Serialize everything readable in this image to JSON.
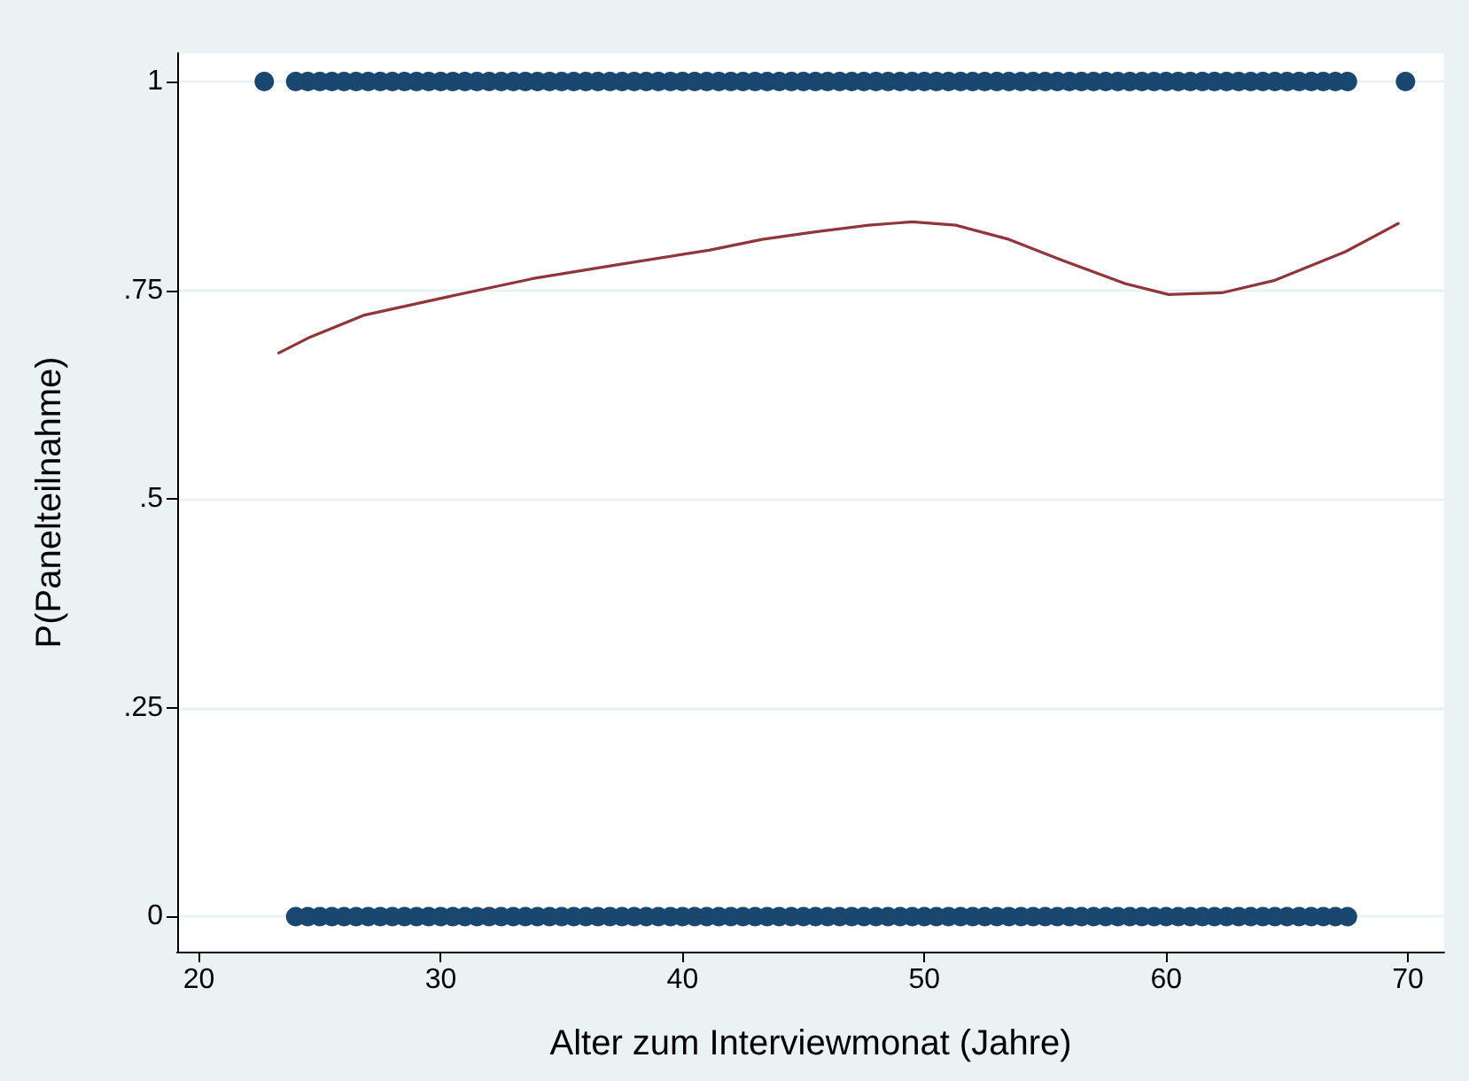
{
  "chart_data": {
    "type": "scatter",
    "xlabel": "Alter zum Interviewmonat (Jahre)",
    "ylabel": "P(Panelteilnahme)",
    "xlim": [
      19.1,
      71.5
    ],
    "ylim": [
      -0.042,
      1.034
    ],
    "xticks": [
      20,
      30,
      40,
      50,
      60,
      70
    ],
    "yticks": [
      0,
      {
        "value": 0.25,
        "label": ".25"
      },
      {
        "value": 0.5,
        "label": ".5"
      },
      {
        "value": 0.75,
        "label": ".75"
      },
      1
    ],
    "grid": "y",
    "series": [
      {
        "marker": "circle",
        "color": "#1a476f",
        "x": [
          22.7,
          24,
          24.5,
          25,
          25.5,
          26,
          26.5,
          27,
          27.5,
          28,
          28.5,
          29,
          29.5,
          30,
          30.5,
          31,
          31.5,
          32,
          32.5,
          33,
          33.5,
          34,
          34.5,
          35,
          35.5,
          36,
          36.5,
          37,
          37.5,
          38,
          38.5,
          39,
          39.5,
          40,
          40.5,
          41,
          41.5,
          42,
          42.5,
          43,
          43.5,
          44,
          44.5,
          45,
          45.5,
          46,
          46.5,
          47,
          47.5,
          48,
          48.5,
          49,
          49.5,
          50,
          50.5,
          51,
          51.5,
          52,
          52.5,
          53,
          53.5,
          54,
          54.5,
          55,
          55.5,
          56,
          56.5,
          57,
          57.5,
          58,
          58.5,
          59,
          59.5,
          60,
          60.5,
          61,
          61.5,
          62,
          62.5,
          63,
          63.5,
          64,
          64.5,
          65,
          65.5,
          66,
          66.5,
          67,
          67.5,
          69.9
        ],
        "values": [
          1,
          1,
          1,
          1,
          1,
          1,
          1,
          1,
          1,
          1,
          1,
          1,
          1,
          1,
          1,
          1,
          1,
          1,
          1,
          1,
          1,
          1,
          1,
          1,
          1,
          1,
          1,
          1,
          1,
          1,
          1,
          1,
          1,
          1,
          1,
          1,
          1,
          1,
          1,
          1,
          1,
          1,
          1,
          1,
          1,
          1,
          1,
          1,
          1,
          1,
          1,
          1,
          1,
          1,
          1,
          1,
          1,
          1,
          1,
          1,
          1,
          1,
          1,
          1,
          1,
          1,
          1,
          1,
          1,
          1,
          1,
          1,
          1,
          1,
          1,
          1,
          1,
          1,
          1,
          1,
          1,
          1,
          1,
          1,
          1,
          1,
          1,
          1,
          1,
          1
        ]
      },
      {
        "marker": "circle",
        "color": "#1a476f",
        "x": [
          24,
          24.5,
          25,
          25.5,
          26,
          26.5,
          27,
          27.5,
          28,
          28.5,
          29,
          29.5,
          30,
          30.5,
          31,
          31.5,
          32,
          32.5,
          33,
          33.5,
          34,
          34.5,
          35,
          35.5,
          36,
          36.5,
          37,
          37.5,
          38,
          38.5,
          39,
          39.5,
          40,
          40.5,
          41,
          41.5,
          42,
          42.5,
          43,
          43.5,
          44,
          44.5,
          45,
          45.5,
          46,
          46.5,
          47,
          47.5,
          48,
          48.5,
          49,
          49.5,
          50,
          50.5,
          51,
          51.5,
          52,
          52.5,
          53,
          53.5,
          54,
          54.5,
          55,
          55.5,
          56,
          56.5,
          57,
          57.5,
          58,
          58.5,
          59,
          59.5,
          60,
          60.5,
          61,
          61.5,
          62,
          62.5,
          63,
          63.5,
          64,
          64.5,
          65,
          65.5,
          66,
          66.5,
          67,
          67.5
        ],
        "values": [
          0,
          0,
          0,
          0,
          0,
          0,
          0,
          0,
          0,
          0,
          0,
          0,
          0,
          0,
          0,
          0,
          0,
          0,
          0,
          0,
          0,
          0,
          0,
          0,
          0,
          0,
          0,
          0,
          0,
          0,
          0,
          0,
          0,
          0,
          0,
          0,
          0,
          0,
          0,
          0,
          0,
          0,
          0,
          0,
          0,
          0,
          0,
          0,
          0,
          0,
          0,
          0,
          0,
          0,
          0,
          0,
          0,
          0,
          0,
          0,
          0,
          0,
          0,
          0,
          0,
          0,
          0,
          0,
          0,
          0,
          0,
          0,
          0,
          0,
          0,
          0,
          0,
          0,
          0,
          0,
          0,
          0,
          0,
          0,
          0,
          0,
          0,
          0
        ]
      },
      {
        "type": "line",
        "marker": "none",
        "line_style": "solid",
        "color": "#90353b",
        "x": [
          23.3,
          24.6,
          26.8,
          30.1,
          33.8,
          37.4,
          41.1,
          43.3,
          45.5,
          47.7,
          49.5,
          51.3,
          53.5,
          55.7,
          58.3,
          60.1,
          62.3,
          64.5,
          67.4,
          69.6
        ],
        "values": [
          0.675,
          0.694,
          0.72,
          0.741,
          0.764,
          0.781,
          0.798,
          0.811,
          0.82,
          0.828,
          0.832,
          0.828,
          0.811,
          0.786,
          0.758,
          0.745,
          0.747,
          0.762,
          0.796,
          0.83
        ]
      }
    ]
  }
}
